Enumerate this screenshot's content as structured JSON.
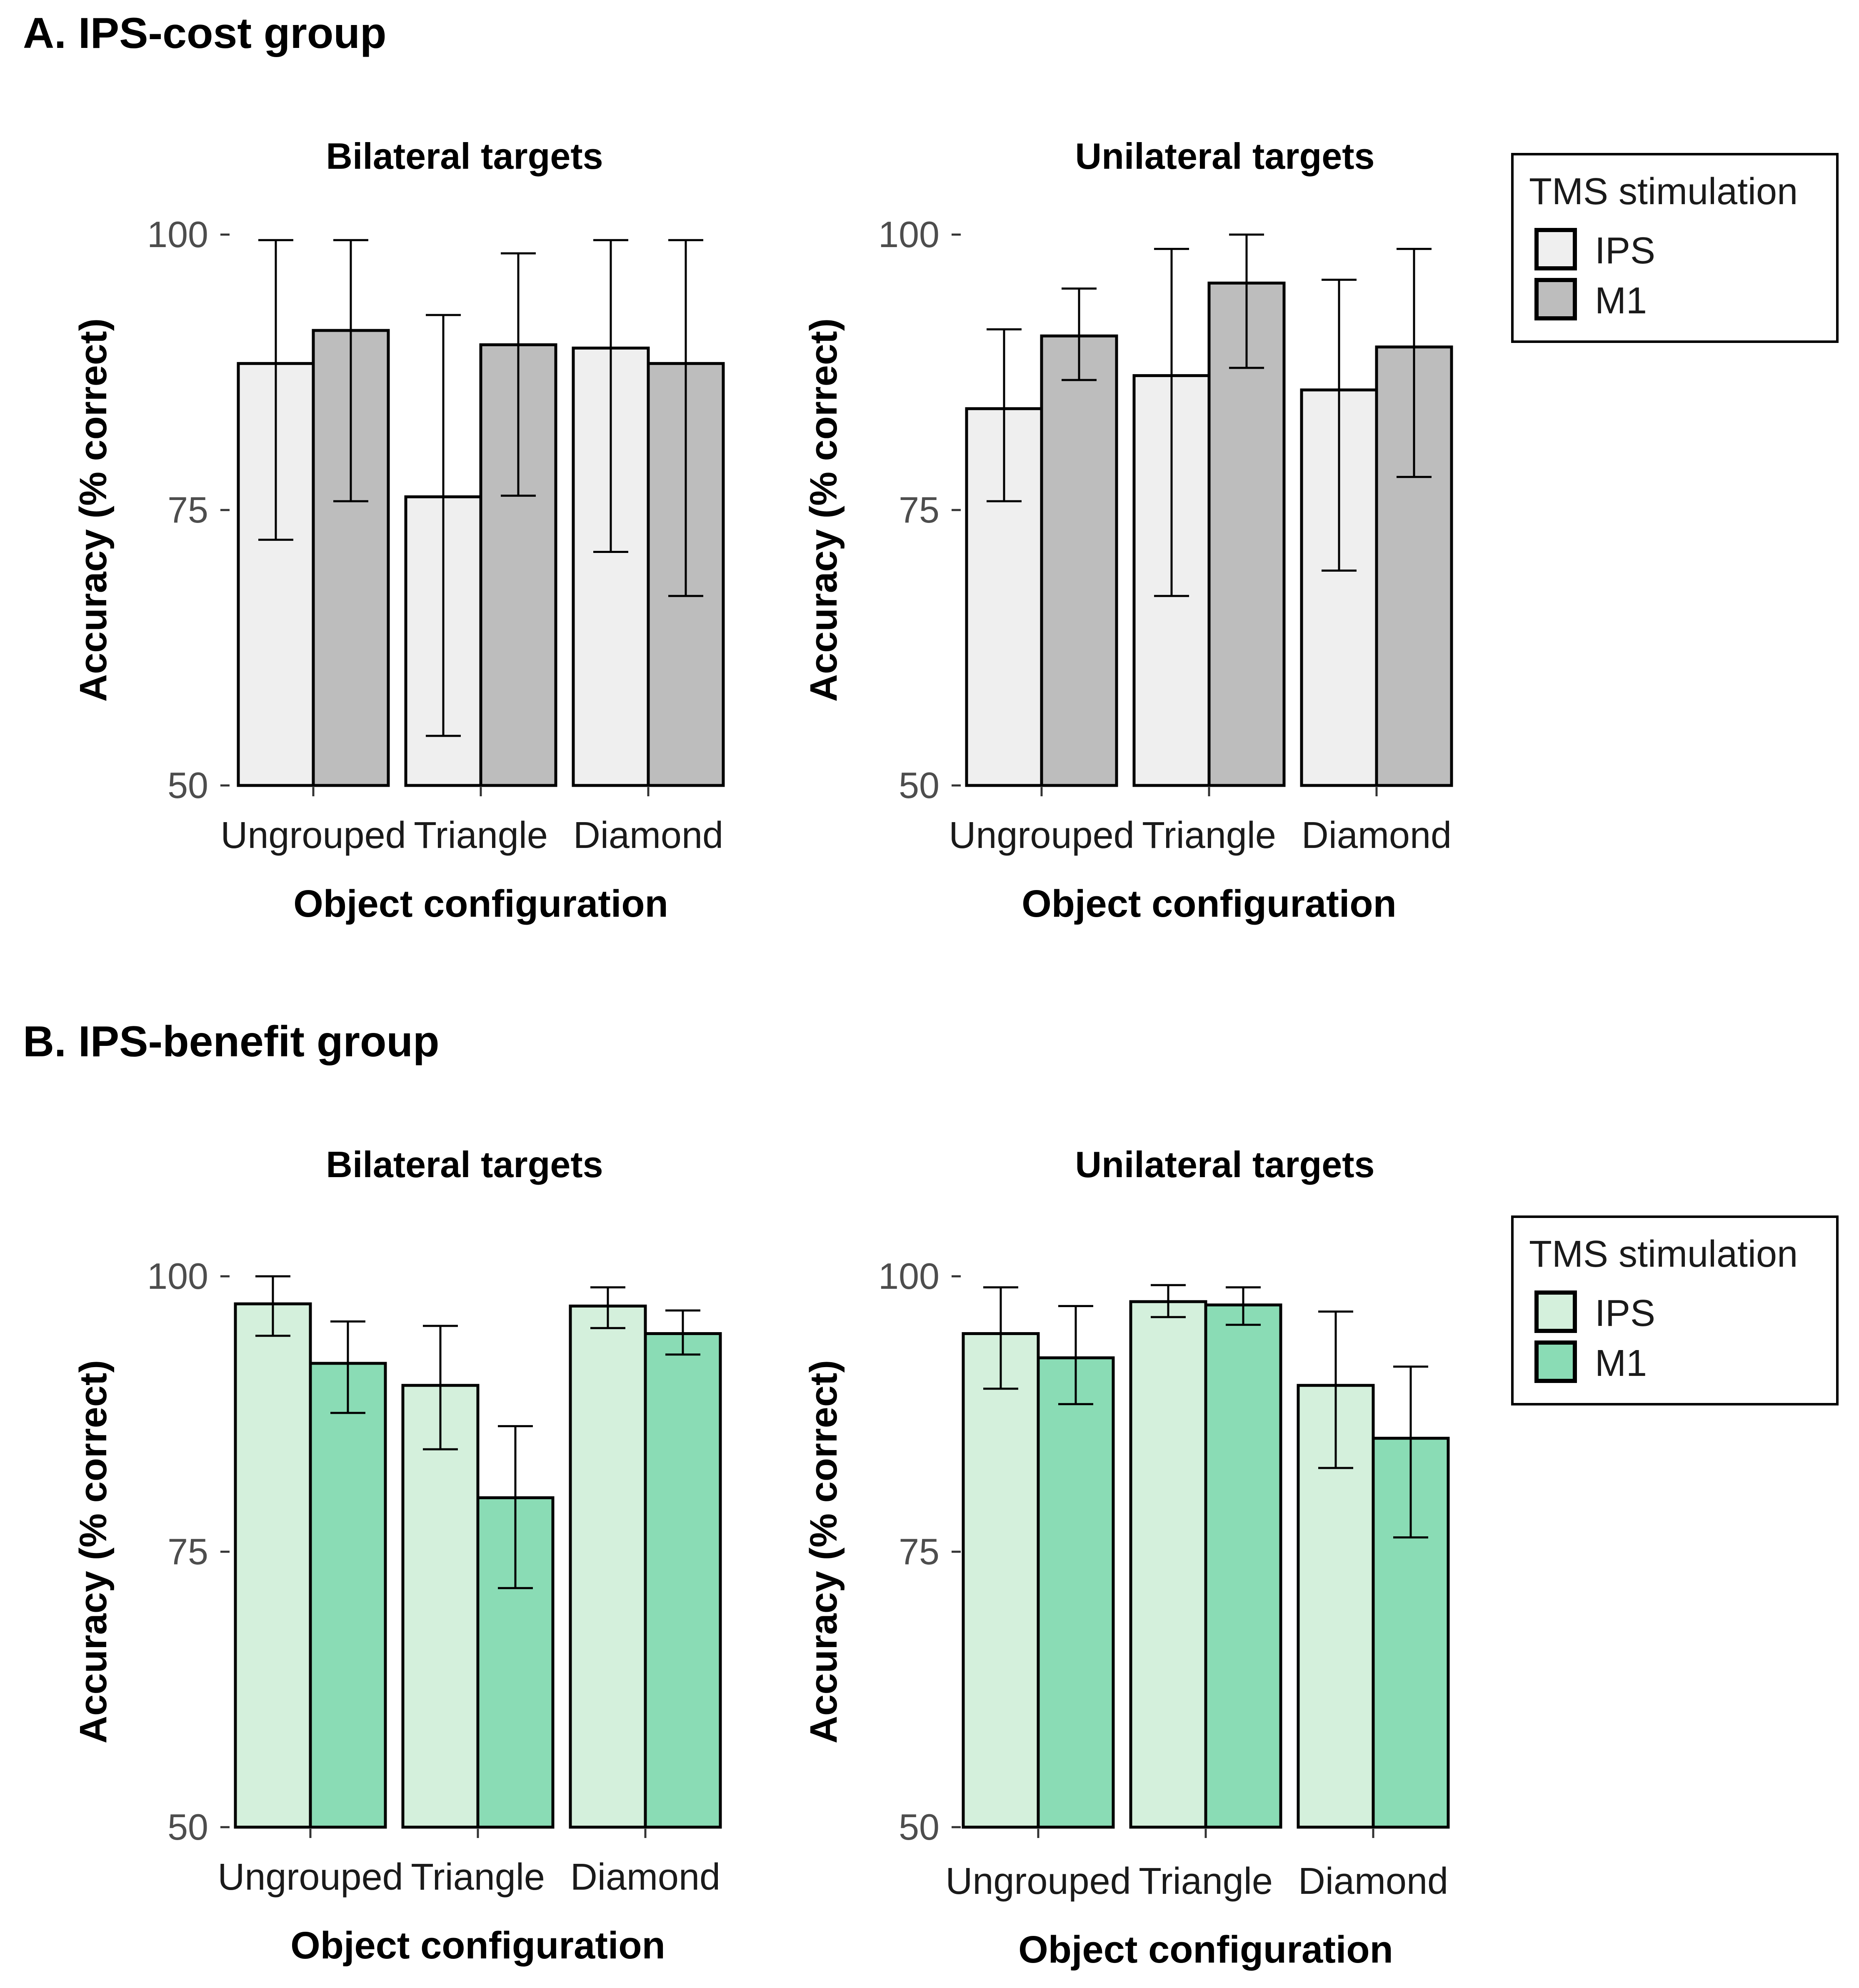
{
  "panels": [
    {
      "label": "A. IPS-cost group",
      "legend": {
        "title": "TMS stimulation",
        "entries": [
          {
            "name": "IPS",
            "color": "#efefef"
          },
          {
            "name": "M1",
            "color": "#bdbdbd"
          }
        ]
      }
    },
    {
      "label": "B. IPS-benefit group",
      "legend": {
        "title": "TMS stimulation",
        "entries": [
          {
            "name": "IPS",
            "color": "#d4f0dc"
          },
          {
            "name": "M1",
            "color": "#8adcb5"
          }
        ]
      }
    }
  ],
  "chart_data": [
    {
      "type": "bar",
      "panel": "A. IPS-cost group",
      "title": "Bilateral targets",
      "xlabel": "Object configuration",
      "ylabel": "Accuracy (% correct)",
      "ylim": [
        50,
        100
      ],
      "yticks": [
        50,
        75,
        100
      ],
      "categories": [
        "Ungrouped",
        "Triangle",
        "Diamond"
      ],
      "series": [
        {
          "name": "IPS",
          "color": "#efefef",
          "values": [
            88.3,
            76.2,
            89.7
          ],
          "err_low": [
            72.3,
            54.5,
            71.2
          ],
          "err_high": [
            99.5,
            92.7,
            99.5
          ]
        },
        {
          "name": "M1",
          "color": "#bdbdbd",
          "values": [
            91.3,
            90.0,
            88.3
          ],
          "err_low": [
            75.8,
            76.3,
            67.2
          ],
          "err_high": [
            99.5,
            98.3,
            99.5
          ]
        }
      ]
    },
    {
      "type": "bar",
      "panel": "A. IPS-cost group",
      "title": "Unilateral targets",
      "xlabel": "Object configuration",
      "ylabel": "Accuracy (% correct)",
      "ylim": [
        50,
        100
      ],
      "yticks": [
        50,
        75,
        100
      ],
      "categories": [
        "Ungrouped",
        "Triangle",
        "Diamond"
      ],
      "series": [
        {
          "name": "IPS",
          "color": "#efefef",
          "values": [
            84.2,
            87.2,
            85.9
          ],
          "err_low": [
            75.8,
            67.2,
            69.5
          ],
          "err_high": [
            91.4,
            98.7,
            95.9
          ]
        },
        {
          "name": "M1",
          "color": "#bdbdbd",
          "values": [
            90.8,
            95.6,
            89.8
          ],
          "err_low": [
            86.8,
            87.9,
            78.0
          ],
          "err_high": [
            95.1,
            100.0,
            98.7
          ]
        }
      ]
    },
    {
      "type": "bar",
      "panel": "B. IPS-benefit group",
      "title": "Bilateral targets",
      "xlabel": "Object configuration",
      "ylabel": "Accuracy (% correct)",
      "ylim": [
        50,
        100
      ],
      "yticks": [
        50,
        75,
        100
      ],
      "categories": [
        "Ungrouped",
        "Triangle",
        "Diamond"
      ],
      "series": [
        {
          "name": "IPS",
          "color": "#d4f0dc",
          "values": [
            97.5,
            90.1,
            97.3
          ],
          "err_low": [
            94.6,
            84.3,
            95.3
          ],
          "err_high": [
            100.0,
            95.5,
            99.0
          ]
        },
        {
          "name": "M1",
          "color": "#8adcb5",
          "values": [
            92.1,
            79.9,
            94.8
          ],
          "err_low": [
            87.6,
            71.7,
            92.9
          ],
          "err_high": [
            95.9,
            86.4,
            96.9
          ]
        }
      ]
    },
    {
      "type": "bar",
      "panel": "B. IPS-benefit group",
      "title": "Unilateral targets",
      "xlabel": "Object configuration",
      "ylabel": "Accuracy (% correct)",
      "ylim": [
        50,
        100
      ],
      "yticks": [
        50,
        75,
        100
      ],
      "categories": [
        "Ungrouped",
        "Triangle",
        "Diamond"
      ],
      "series": [
        {
          "name": "IPS",
          "color": "#d4f0dc",
          "values": [
            94.8,
            97.7,
            90.1
          ],
          "err_low": [
            89.8,
            96.3,
            82.6
          ],
          "err_high": [
            99.0,
            99.2,
            96.8
          ]
        },
        {
          "name": "M1",
          "color": "#8adcb5",
          "values": [
            92.6,
            97.4,
            85.3
          ],
          "err_low": [
            88.4,
            95.6,
            76.3
          ],
          "err_high": [
            97.3,
            99.0,
            91.8
          ]
        }
      ]
    }
  ]
}
